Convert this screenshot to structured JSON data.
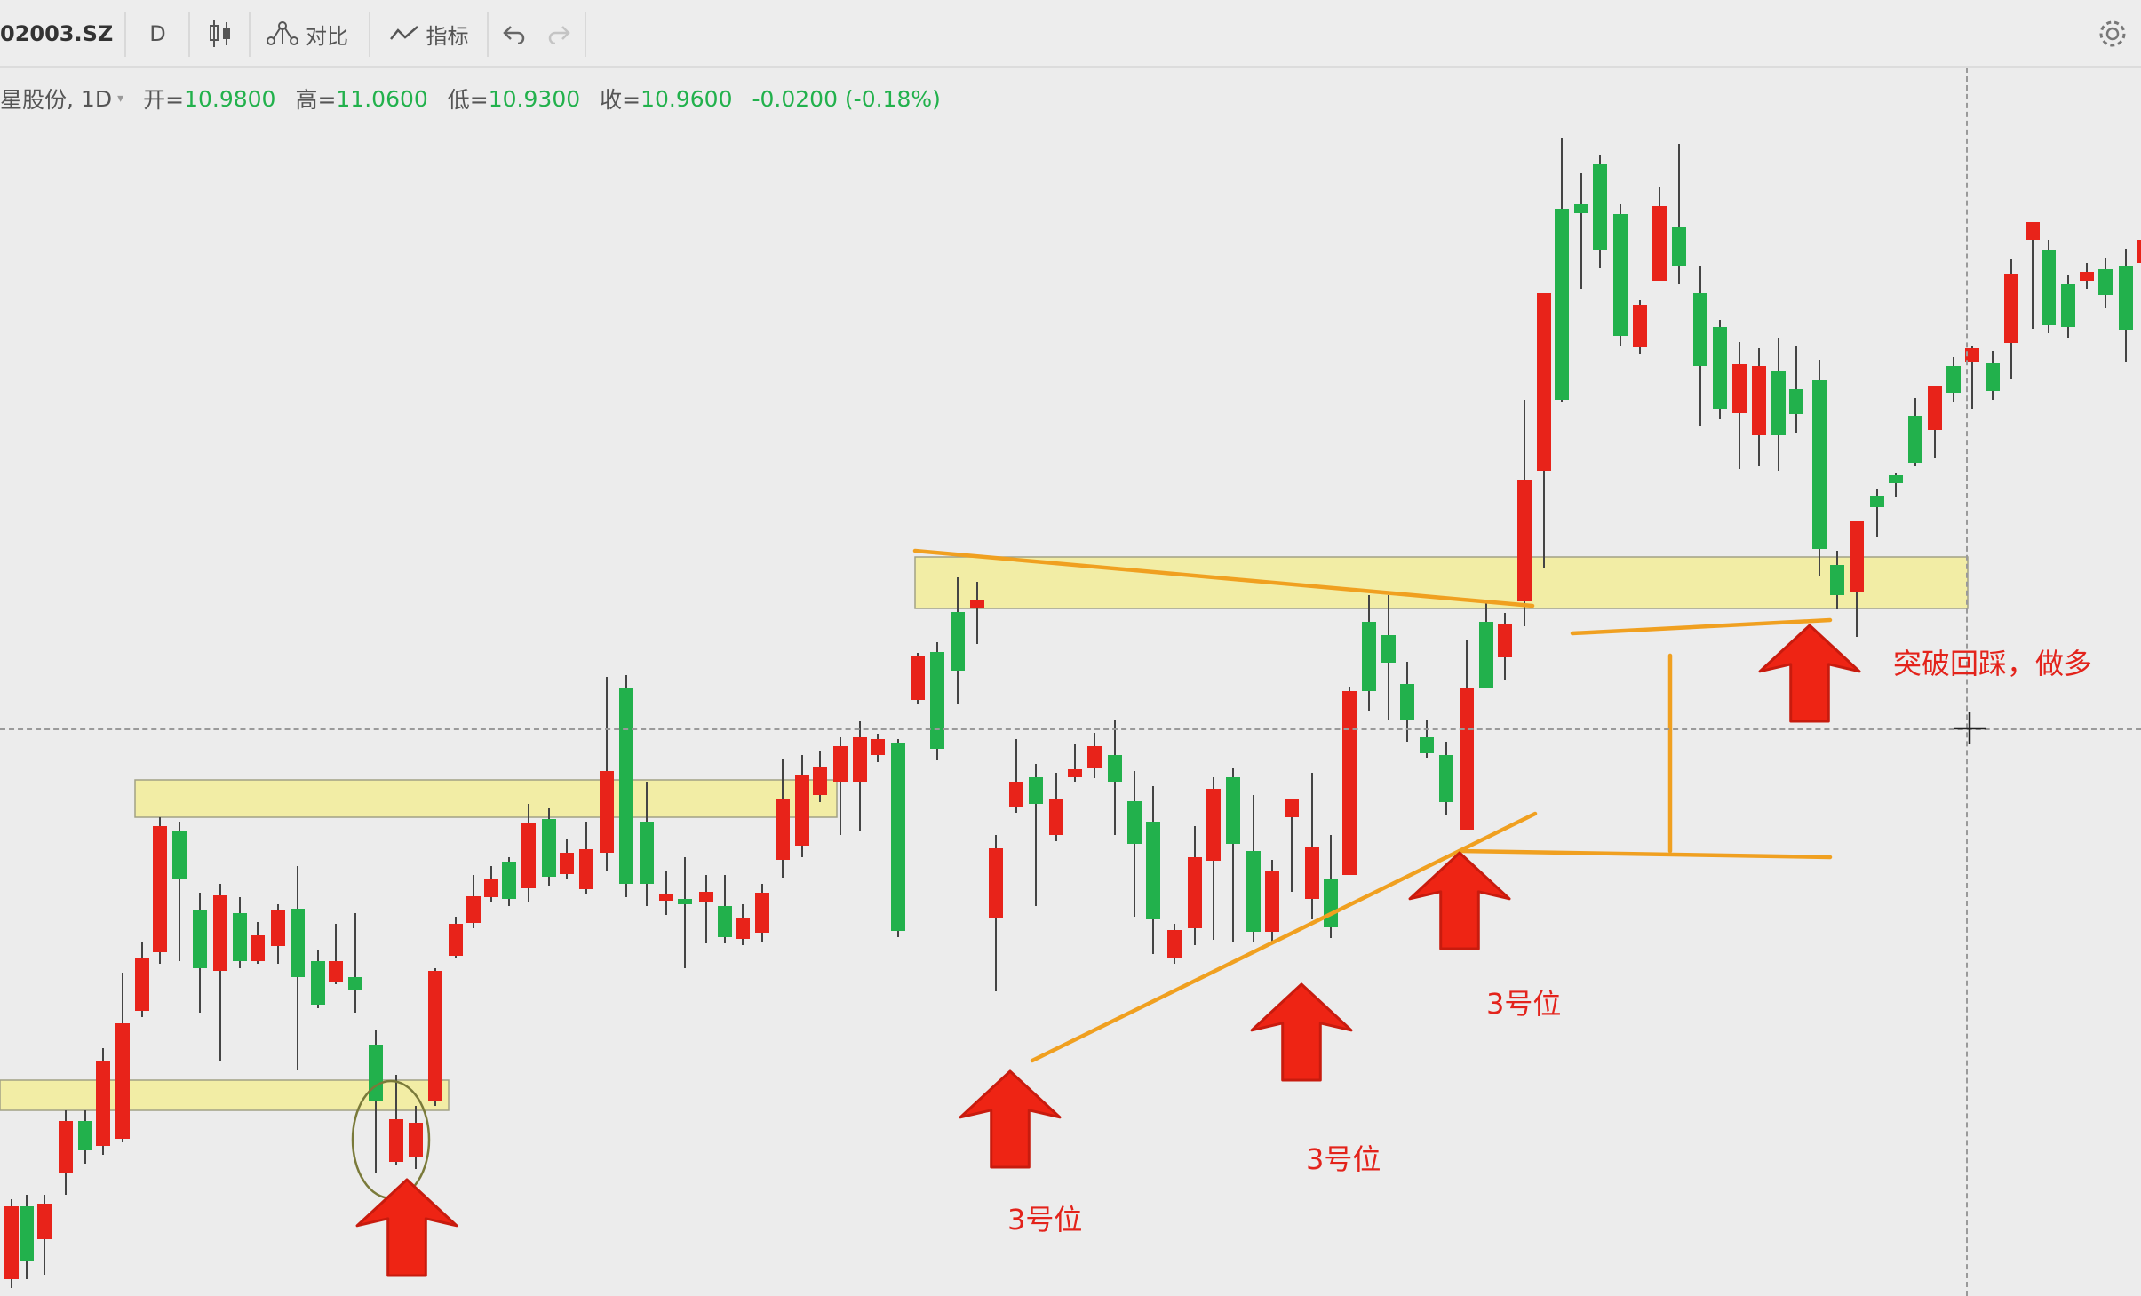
{
  "toolbar": {
    "symbol": "02003.SZ",
    "interval": "D",
    "compare_label": "对比",
    "indicators_label": "指标"
  },
  "legend": {
    "name": "星股份",
    "interval": "1D",
    "open_label": "开=",
    "open": "10.9800",
    "high_label": "高=",
    "high": "11.0600",
    "low_label": "低=",
    "low": "10.9300",
    "close_label": "收=",
    "close": "10.9600",
    "change": "-0.0200 (-0.18%)"
  },
  "colors": {
    "up": "#e8231a",
    "down": "#22b14c",
    "zone_fill": "#f3ee9e",
    "trendline": "#f0a020",
    "arrow": "#ee2414",
    "annotation": "#e3231b"
  },
  "annotations": {
    "label_1": "3号位",
    "label_2": "3号位",
    "label_3": "3号位",
    "breakout_note": "突破回踩，做多"
  },
  "icons": [
    "candles-icon",
    "compare-icon",
    "indicator-icon",
    "undo-icon",
    "redo-icon",
    "settings-icon",
    "arrow-up-icon"
  ]
}
